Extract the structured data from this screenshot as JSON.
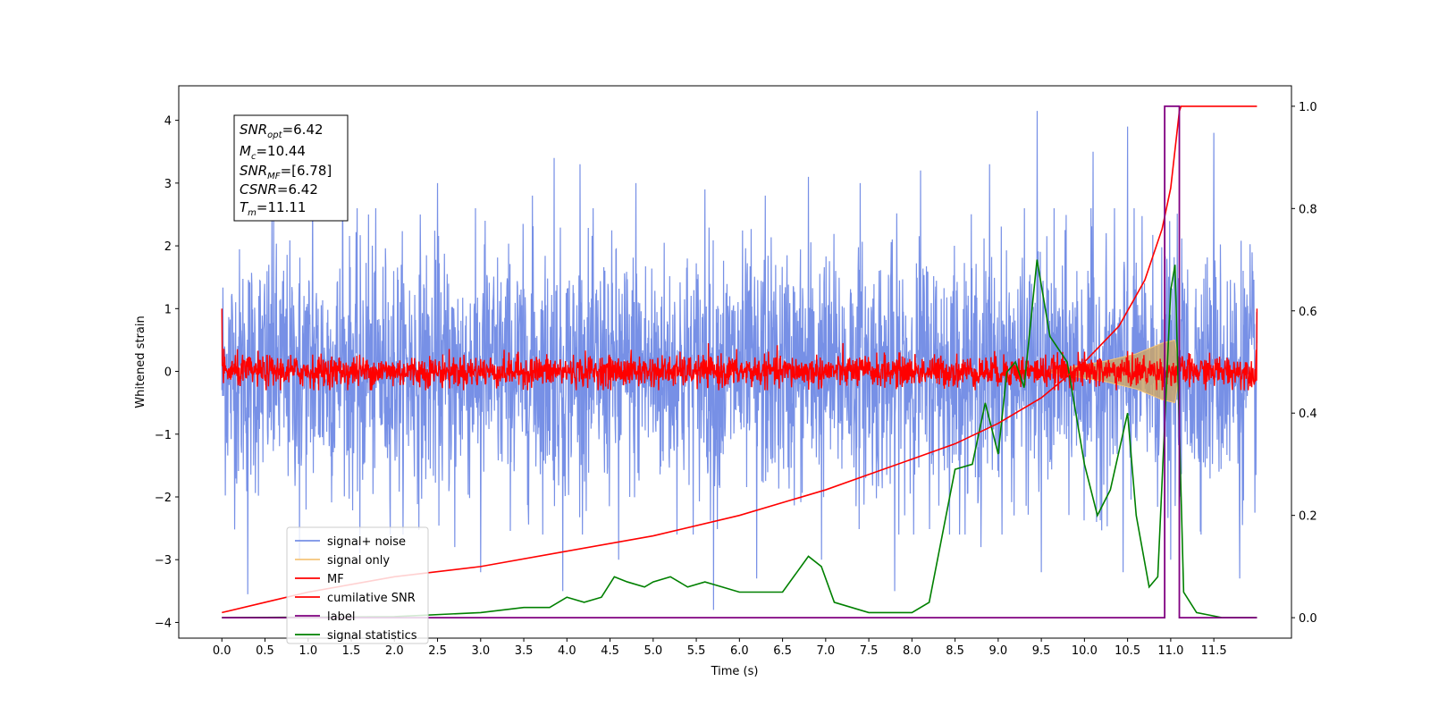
{
  "chart_data": {
    "type": "line",
    "xlabel": "Time (s)",
    "ylabel": "Whitened strain",
    "xlim": [
      -0.5,
      12.4
    ],
    "ylim": [
      -4.25,
      4.55
    ],
    "y2lim": [
      -0.04,
      1.04
    ],
    "x_ticks": [
      "0.0",
      "0.5",
      "1.0",
      "1.5",
      "2.0",
      "2.5",
      "3.0",
      "3.5",
      "4.0",
      "4.5",
      "5.0",
      "5.5",
      "6.0",
      "6.5",
      "7.0",
      "7.5",
      "8.0",
      "8.5",
      "9.0",
      "9.5",
      "10.0",
      "10.5",
      "11.0",
      "11.5"
    ],
    "y_ticks": [
      "4",
      "3",
      "2",
      "1",
      "0",
      "−1",
      "−2",
      "−3",
      "−4"
    ],
    "y2_ticks": [
      "1.0",
      "0.8",
      "0.6",
      "0.4",
      "0.2",
      "0.0"
    ],
    "annotation": {
      "snr_opt": {
        "base": "SNR",
        "sub": "opt",
        "value": "=6.42"
      },
      "mc": {
        "base": "M",
        "sub": "c",
        "value": "=10.44"
      },
      "snr_mf": {
        "base": "SNR",
        "sub": "MF",
        "value": "=[6.78]"
      },
      "csnr": {
        "base": "CSNR",
        "sub": "",
        "value": "=6.42"
      },
      "tm": {
        "base": "T",
        "sub": "m",
        "value": "=11.11"
      }
    },
    "legend": {
      "placement": "lower-left",
      "entries": [
        {
          "label": "signal+ noise",
          "color": "#7790e6"
        },
        {
          "label": "signal only",
          "color": "#f5c57a"
        },
        {
          "label": "MF",
          "color": "#ff0000"
        },
        {
          "label": "cumilative SNR",
          "color": "#ff0000"
        },
        {
          "label": "label",
          "color": "#800080"
        },
        {
          "label": "signal statistics",
          "color": "#008000"
        }
      ]
    },
    "series": [
      {
        "name": "signal+ noise",
        "axis": "left",
        "color": "#7790e6",
        "x_start": 0.0,
        "x_end": 12.0,
        "typical_amplitude": 1.6,
        "peaks": [
          [
            0.3,
            2.9
          ],
          [
            0.6,
            2.6
          ],
          [
            1.05,
            3.0
          ],
          [
            1.4,
            3.5
          ],
          [
            1.7,
            2.5
          ],
          [
            2.3,
            2.5
          ],
          [
            2.5,
            3.0
          ],
          [
            3.05,
            2.4
          ],
          [
            3.6,
            2.8
          ],
          [
            3.85,
            3.4
          ],
          [
            4.15,
            3.3
          ],
          [
            4.8,
            3.0
          ],
          [
            5.6,
            2.9
          ],
          [
            6.3,
            2.8
          ],
          [
            6.8,
            3.1
          ],
          [
            7.4,
            3.0
          ],
          [
            8.1,
            3.2
          ],
          [
            8.9,
            3.3
          ],
          [
            9.45,
            4.15
          ],
          [
            10.1,
            3.5
          ],
          [
            10.5,
            3.9
          ],
          [
            11.5,
            3.8
          ]
        ],
        "troughs": [
          [
            0.3,
            -3.55
          ],
          [
            0.9,
            -3.0
          ],
          [
            1.6,
            -2.9
          ],
          [
            2.7,
            -2.8
          ],
          [
            3.0,
            -3.2
          ],
          [
            3.95,
            -3.5
          ],
          [
            4.6,
            -3.0
          ],
          [
            5.7,
            -3.8
          ],
          [
            6.2,
            -3.3
          ],
          [
            6.95,
            -3.0
          ],
          [
            7.8,
            -3.5
          ],
          [
            8.8,
            -2.8
          ],
          [
            9.5,
            -3.2
          ],
          [
            10.45,
            -3.2
          ],
          [
            11.0,
            -3.0
          ],
          [
            11.8,
            -3.3
          ]
        ]
      },
      {
        "name": "MF",
        "axis": "left",
        "color": "#ff0000",
        "x_start": 0.0,
        "x_end": 12.0,
        "typical_amplitude": 0.28,
        "edge_spikes": [
          [
            0.0,
            1.0
          ],
          [
            12.0,
            1.0
          ]
        ]
      },
      {
        "name": "signal only",
        "axis": "left",
        "color": "#f5c57a",
        "envelope": [
          [
            9.6,
            0.02
          ],
          [
            10.2,
            0.15
          ],
          [
            10.6,
            0.28
          ],
          [
            10.9,
            0.45
          ],
          [
            11.05,
            0.5
          ],
          [
            11.1,
            0.0
          ]
        ]
      },
      {
        "name": "cumilative SNR",
        "axis": "right",
        "color": "#ff0000",
        "x": [
          0.0,
          0.5,
          1.0,
          2.0,
          3.0,
          4.0,
          5.0,
          6.0,
          7.0,
          7.5,
          8.0,
          8.5,
          9.0,
          9.5,
          10.0,
          10.4,
          10.7,
          10.9,
          11.0,
          11.1,
          11.12,
          12.0
        ],
        "y": [
          0.01,
          0.03,
          0.05,
          0.08,
          0.1,
          0.13,
          0.16,
          0.2,
          0.25,
          0.28,
          0.31,
          0.34,
          0.38,
          0.43,
          0.5,
          0.57,
          0.66,
          0.76,
          0.84,
          0.99,
          1.0,
          1.0
        ]
      },
      {
        "name": "label",
        "axis": "right",
        "color": "#800080",
        "x": [
          0.0,
          10.93,
          10.93,
          11.0,
          11.0,
          11.1,
          11.1,
          12.0
        ],
        "y": [
          0.0,
          0.0,
          1.0,
          1.0,
          1.0,
          1.0,
          0.0,
          0.0
        ]
      },
      {
        "name": "signal statistics",
        "axis": "right",
        "color": "#008000",
        "x": [
          0.0,
          2.0,
          3.0,
          3.5,
          3.8,
          4.0,
          4.2,
          4.4,
          4.55,
          4.7,
          4.9,
          5.0,
          5.2,
          5.4,
          5.6,
          5.8,
          6.0,
          6.2,
          6.5,
          6.8,
          6.95,
          7.1,
          7.5,
          8.0,
          8.2,
          8.5,
          8.7,
          8.85,
          9.0,
          9.1,
          9.2,
          9.3,
          9.45,
          9.6,
          9.8,
          10.0,
          10.15,
          10.3,
          10.5,
          10.6,
          10.75,
          10.85,
          11.0,
          11.05,
          11.15,
          11.3,
          11.6,
          12.0
        ],
        "y": [
          0.0,
          0.002,
          0.01,
          0.02,
          0.02,
          0.04,
          0.03,
          0.04,
          0.08,
          0.07,
          0.06,
          0.07,
          0.08,
          0.06,
          0.07,
          0.06,
          0.05,
          0.05,
          0.05,
          0.12,
          0.1,
          0.03,
          0.01,
          0.01,
          0.03,
          0.29,
          0.3,
          0.42,
          0.32,
          0.48,
          0.5,
          0.45,
          0.7,
          0.55,
          0.5,
          0.3,
          0.2,
          0.25,
          0.4,
          0.2,
          0.06,
          0.08,
          0.64,
          0.69,
          0.05,
          0.01,
          0.0,
          0.0
        ]
      }
    ]
  }
}
